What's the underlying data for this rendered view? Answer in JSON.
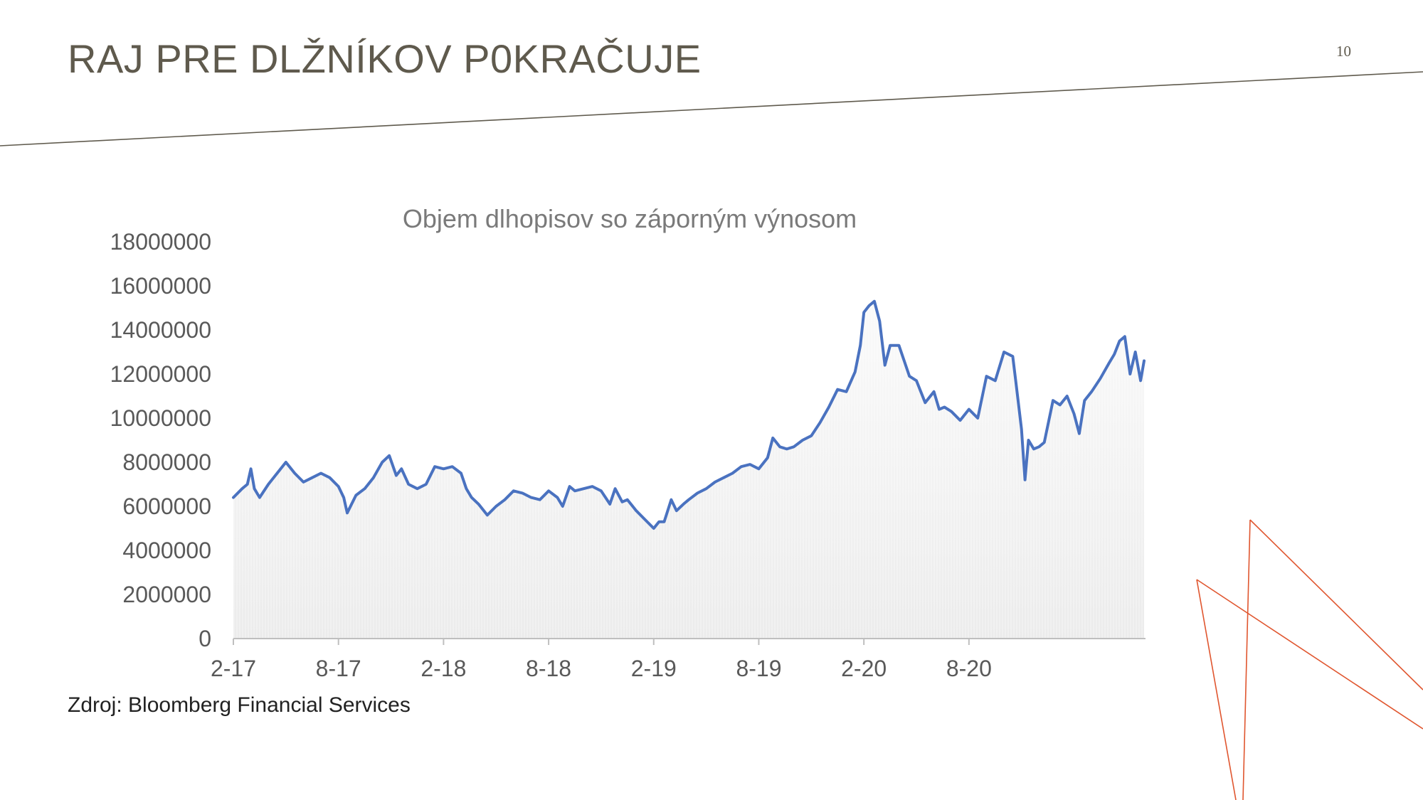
{
  "slide": {
    "title": "RAJ PRE DLŽNÍKOV P0KRAČUJE",
    "page_number": "10",
    "source": "Zdroj: Bloomberg Financial Services"
  },
  "colors": {
    "title": "#5f5a4d",
    "divider": "#5f5a4d",
    "line": "#4a72c0",
    "area_top": "#f6f6f6",
    "area_bottom": "#ebebeb",
    "axis_text": "#595959",
    "decoration": "#e0562f"
  },
  "chart_data": {
    "type": "line",
    "title": "Objem dlhopisov so záporným výnosom",
    "xlabel": "",
    "ylabel": "",
    "ylim": [
      0,
      18000000
    ],
    "y_ticks": [
      0,
      2000000,
      4000000,
      6000000,
      8000000,
      10000000,
      12000000,
      14000000,
      16000000,
      18000000
    ],
    "y_tick_labels": [
      "0",
      "2000000",
      "4000000",
      "6000000",
      "8000000",
      "10000000",
      "12000000",
      "14000000",
      "16000000",
      "18000000"
    ],
    "x_tick_labels": [
      "2-17",
      "8-17",
      "2-18",
      "8-18",
      "2-19",
      "8-19",
      "2-20",
      "8-20"
    ],
    "x_unit": "month index (0 = Feb 2017)",
    "grid": false,
    "legend": "none",
    "series": [
      {
        "values": [
          [
            0.0,
            6400000
          ],
          [
            0.5,
            6800000
          ],
          [
            0.8,
            7000000
          ],
          [
            1.0,
            7700000
          ],
          [
            1.2,
            6800000
          ],
          [
            1.5,
            6400000
          ],
          [
            2.0,
            7000000
          ],
          [
            2.5,
            7500000
          ],
          [
            3.0,
            8000000
          ],
          [
            3.5,
            7500000
          ],
          [
            4.0,
            7100000
          ],
          [
            4.5,
            7300000
          ],
          [
            5.0,
            7500000
          ],
          [
            5.5,
            7300000
          ],
          [
            6.0,
            6900000
          ],
          [
            6.3,
            6400000
          ],
          [
            6.5,
            5700000
          ],
          [
            7.0,
            6500000
          ],
          [
            7.5,
            6800000
          ],
          [
            8.0,
            7300000
          ],
          [
            8.5,
            8000000
          ],
          [
            8.9,
            8300000
          ],
          [
            9.3,
            7400000
          ],
          [
            9.6,
            7700000
          ],
          [
            10.0,
            7000000
          ],
          [
            10.5,
            6800000
          ],
          [
            11.0,
            7000000
          ],
          [
            11.5,
            7800000
          ],
          [
            12.0,
            7700000
          ],
          [
            12.5,
            7800000
          ],
          [
            13.0,
            7500000
          ],
          [
            13.3,
            6800000
          ],
          [
            13.6,
            6400000
          ],
          [
            14.0,
            6100000
          ],
          [
            14.5,
            5600000
          ],
          [
            15.0,
            6000000
          ],
          [
            15.5,
            6300000
          ],
          [
            16.0,
            6700000
          ],
          [
            16.5,
            6600000
          ],
          [
            17.0,
            6400000
          ],
          [
            17.5,
            6300000
          ],
          [
            18.0,
            6700000
          ],
          [
            18.5,
            6400000
          ],
          [
            18.8,
            6000000
          ],
          [
            19.2,
            6900000
          ],
          [
            19.5,
            6700000
          ],
          [
            20.0,
            6800000
          ],
          [
            20.5,
            6900000
          ],
          [
            21.0,
            6700000
          ],
          [
            21.5,
            6100000
          ],
          [
            21.8,
            6800000
          ],
          [
            22.2,
            6200000
          ],
          [
            22.5,
            6300000
          ],
          [
            23.0,
            5800000
          ],
          [
            23.5,
            5400000
          ],
          [
            24.0,
            5000000
          ],
          [
            24.3,
            5300000
          ],
          [
            24.6,
            5300000
          ],
          [
            25.0,
            6300000
          ],
          [
            25.3,
            5800000
          ],
          [
            25.7,
            6100000
          ],
          [
            26.0,
            6300000
          ],
          [
            26.5,
            6600000
          ],
          [
            27.0,
            6800000
          ],
          [
            27.5,
            7100000
          ],
          [
            28.0,
            7300000
          ],
          [
            28.5,
            7500000
          ],
          [
            29.0,
            7800000
          ],
          [
            29.5,
            7900000
          ],
          [
            30.0,
            7700000
          ],
          [
            30.5,
            8200000
          ],
          [
            30.8,
            9100000
          ],
          [
            31.2,
            8700000
          ],
          [
            31.6,
            8600000
          ],
          [
            32.0,
            8700000
          ],
          [
            32.5,
            9000000
          ],
          [
            33.0,
            9200000
          ],
          [
            33.5,
            9800000
          ],
          [
            34.0,
            10500000
          ],
          [
            34.5,
            11300000
          ],
          [
            35.0,
            11200000
          ],
          [
            35.5,
            12100000
          ],
          [
            35.8,
            13300000
          ],
          [
            36.0,
            14800000
          ],
          [
            36.3,
            15100000
          ],
          [
            36.6,
            15300000
          ],
          [
            36.9,
            14400000
          ],
          [
            37.2,
            12400000
          ],
          [
            37.5,
            13300000
          ],
          [
            38.0,
            13300000
          ],
          [
            38.3,
            12600000
          ],
          [
            38.6,
            11900000
          ],
          [
            39.0,
            11700000
          ],
          [
            39.5,
            10700000
          ],
          [
            40.0,
            11200000
          ],
          [
            40.3,
            10400000
          ],
          [
            40.6,
            10500000
          ],
          [
            41.0,
            10300000
          ],
          [
            41.5,
            9900000
          ],
          [
            42.0,
            10400000
          ],
          [
            42.5,
            10000000
          ],
          [
            43.0,
            11900000
          ],
          [
            43.5,
            11700000
          ],
          [
            44.0,
            13000000
          ],
          [
            44.5,
            12800000
          ],
          [
            44.7,
            11500000
          ],
          [
            45.0,
            9500000
          ],
          [
            45.2,
            7200000
          ],
          [
            45.4,
            9000000
          ],
          [
            45.7,
            8600000
          ],
          [
            46.0,
            8700000
          ],
          [
            46.3,
            8900000
          ],
          [
            46.8,
            10800000
          ],
          [
            47.2,
            10600000
          ],
          [
            47.6,
            11000000
          ],
          [
            48.0,
            10200000
          ],
          [
            48.3,
            9300000
          ],
          [
            48.6,
            10800000
          ],
          [
            49.0,
            11200000
          ],
          [
            49.5,
            11800000
          ],
          [
            50.0,
            12500000
          ],
          [
            50.3,
            12900000
          ],
          [
            50.6,
            13500000
          ],
          [
            50.9,
            13700000
          ],
          [
            51.2,
            12000000
          ],
          [
            51.5,
            13000000
          ],
          [
            51.8,
            11700000
          ],
          [
            52.0,
            12600000
          ]
        ]
      }
    ]
  }
}
